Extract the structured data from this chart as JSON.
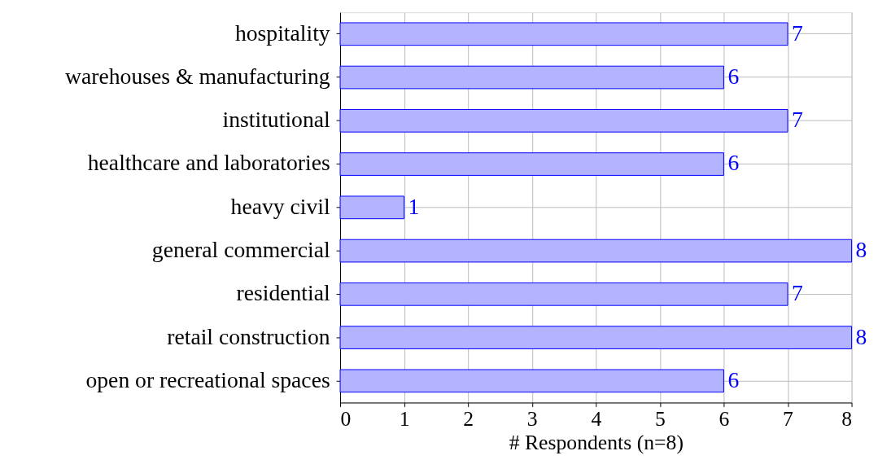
{
  "chart_data": {
    "type": "bar",
    "orientation": "horizontal",
    "xlabel": "# Respondents (n=8)",
    "categories": [
      "hospitality",
      "warehouses & manufacturing",
      "institutional",
      "healthcare and laboratories",
      "heavy civil",
      "general commercial",
      "residential",
      "retail construction",
      "open or recreational spaces"
    ],
    "values": [
      7,
      6,
      7,
      6,
      1,
      8,
      7,
      8,
      6
    ],
    "color": "#b3b3ff",
    "xlim": [
      0,
      8
    ],
    "xticks": [
      0,
      1,
      2,
      3,
      4,
      5,
      6,
      7,
      8
    ],
    "grid": true,
    "data_labels": true
  }
}
